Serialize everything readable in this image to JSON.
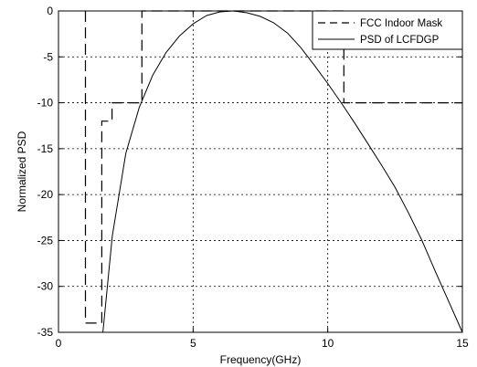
{
  "chart_data": {
    "type": "line",
    "title": "",
    "xlabel": "Frequency(GHz)",
    "ylabel": "Normalized PSD",
    "xlim": [
      0,
      15
    ],
    "ylim": [
      -35,
      0
    ],
    "xticks": [
      0,
      5,
      10,
      15
    ],
    "yticks": [
      0,
      -5,
      -10,
      -15,
      -20,
      -25,
      -30,
      -35
    ],
    "grid": true,
    "legend": "top-right",
    "series": [
      {
        "name": "FCC Indoor Mask",
        "style": "dashed",
        "color": "#000000",
        "x": [
          1,
          1,
          1.61,
          1.61,
          1.99,
          1.99,
          3.1,
          3.1,
          10.6,
          10.6,
          15
        ],
        "y": [
          0,
          -34,
          -34,
          -12,
          -12,
          -10,
          -10,
          0,
          0,
          -10,
          -10
        ]
      },
      {
        "name": "PSD of LCFDGP",
        "style": "solid",
        "color": "#000000",
        "x": [
          1.65,
          2,
          2.5,
          3,
          3.5,
          4,
          4.5,
          5,
          5.5,
          6,
          6.5,
          7,
          7.5,
          8,
          8.5,
          9,
          9.5,
          10,
          10.5,
          11,
          11.5,
          12,
          12.5,
          13,
          13.5,
          14,
          14.5,
          15
        ],
        "y": [
          -35,
          -24.5,
          -15.5,
          -10.5,
          -7,
          -4.5,
          -2.7,
          -1.4,
          -0.5,
          -0.1,
          0,
          -0.2,
          -0.6,
          -1.3,
          -2.4,
          -4,
          -5.9,
          -7.9,
          -10,
          -12.2,
          -14.5,
          -16.8,
          -19.2,
          -22,
          -25,
          -28.4,
          -31.7,
          -35
        ]
      }
    ]
  }
}
